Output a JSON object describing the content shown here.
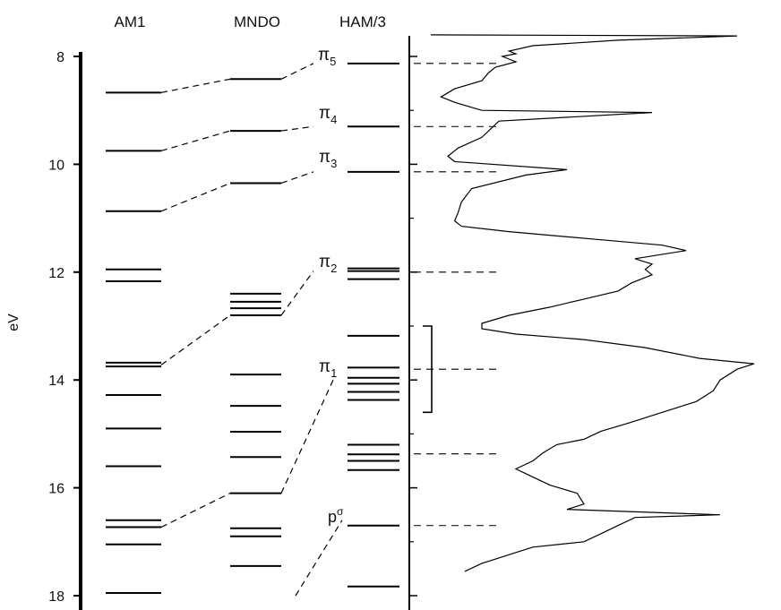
{
  "headers": {
    "am1": "AM1",
    "mndo": "MNDO",
    "ham3": "HAM/3"
  },
  "axis": {
    "label": "eV",
    "range": [
      7.6,
      18.2
    ],
    "ticks": [
      {
        "v": 8,
        "label": "8"
      },
      {
        "v": 10,
        "label": "10"
      },
      {
        "v": 12,
        "label": "12"
      },
      {
        "v": 14,
        "label": "14"
      },
      {
        "v": 16,
        "label": "16"
      },
      {
        "v": 18,
        "label": "18"
      }
    ]
  },
  "orbital_labels": {
    "pi5": {
      "sym": "π",
      "sub": "5"
    },
    "pi4": {
      "sym": "π",
      "sub": "4"
    },
    "pi3": {
      "sym": "π",
      "sub": "3"
    },
    "pi2": {
      "sym": "π",
      "sub": "2"
    },
    "pi1": {
      "sym": "π",
      "sub": "1"
    },
    "psigma": {
      "sym": "p",
      "sub": "σ"
    }
  },
  "levels": {
    "am1": [
      8.67,
      9.75,
      10.87,
      11.95,
      12.17,
      13.68,
      13.75,
      14.28,
      14.9,
      15.6,
      16.6,
      16.73,
      17.05,
      17.95
    ],
    "mndo": [
      8.42,
      9.38,
      10.35,
      12.4,
      12.55,
      12.67,
      12.8,
      13.9,
      14.48,
      14.96,
      15.43,
      16.1,
      16.75,
      16.9,
      17.45
    ],
    "ham3": [
      8.13,
      9.3,
      10.14,
      11.93,
      11.98,
      12.13,
      13.18,
      13.77,
      13.96,
      14.07,
      14.22,
      14.37,
      15.2,
      15.38,
      15.5,
      15.67,
      16.7,
      17.83
    ]
  },
  "correlations": [
    {
      "am1": 8.67,
      "mndo": 8.42,
      "ham3": 8.13
    },
    {
      "am1": 9.75,
      "mndo": 9.38,
      "ham3": 9.3
    },
    {
      "am1": 10.87,
      "mndo": 10.35,
      "ham3": 10.14
    },
    {
      "am1": 13.72,
      "mndo": 12.8,
      "ham3": 11.98
    },
    {
      "am1": 16.73,
      "mndo": 16.1,
      "ham3": 14.1
    },
    {
      "mndo": 18.0,
      "ham3": 16.7
    }
  ],
  "spectrum": [
    [
      7.6,
      0.05
    ],
    [
      7.62,
      0.95
    ],
    [
      7.7,
      0.6
    ],
    [
      7.8,
      0.35
    ],
    [
      7.9,
      0.28
    ],
    [
      7.95,
      0.3
    ],
    [
      8.0,
      0.26
    ],
    [
      8.1,
      0.3
    ],
    [
      8.2,
      0.24
    ],
    [
      8.3,
      0.22
    ],
    [
      8.45,
      0.2
    ],
    [
      8.6,
      0.12
    ],
    [
      8.75,
      0.08
    ],
    [
      8.85,
      0.12
    ],
    [
      9.0,
      0.2
    ],
    [
      9.04,
      0.7
    ],
    [
      9.2,
      0.25
    ],
    [
      9.5,
      0.2
    ],
    [
      9.7,
      0.13
    ],
    [
      9.85,
      0.1
    ],
    [
      9.95,
      0.12
    ],
    [
      10.1,
      0.45
    ],
    [
      10.2,
      0.33
    ],
    [
      10.45,
      0.17
    ],
    [
      10.7,
      0.14
    ],
    [
      10.9,
      0.13
    ],
    [
      11.05,
      0.12
    ],
    [
      11.15,
      0.14
    ],
    [
      11.25,
      0.28
    ],
    [
      11.4,
      0.55
    ],
    [
      11.5,
      0.73
    ],
    [
      11.6,
      0.8
    ],
    [
      11.75,
      0.65
    ],
    [
      11.85,
      0.7
    ],
    [
      11.95,
      0.68
    ],
    [
      12.05,
      0.7
    ],
    [
      12.2,
      0.64
    ],
    [
      12.35,
      0.6
    ],
    [
      12.5,
      0.5
    ],
    [
      12.65,
      0.4
    ],
    [
      12.8,
      0.28
    ],
    [
      12.95,
      0.2
    ],
    [
      13.05,
      0.2
    ],
    [
      13.15,
      0.3
    ],
    [
      13.25,
      0.5
    ],
    [
      13.4,
      0.68
    ],
    [
      13.6,
      0.84
    ],
    [
      13.7,
      1.0
    ],
    [
      13.8,
      0.95
    ],
    [
      14.0,
      0.9
    ],
    [
      14.2,
      0.88
    ],
    [
      14.4,
      0.83
    ],
    [
      14.6,
      0.73
    ],
    [
      14.8,
      0.63
    ],
    [
      14.95,
      0.55
    ],
    [
      15.1,
      0.5
    ],
    [
      15.2,
      0.42
    ],
    [
      15.35,
      0.38
    ],
    [
      15.5,
      0.35
    ],
    [
      15.65,
      0.3
    ],
    [
      15.8,
      0.35
    ],
    [
      15.95,
      0.4
    ],
    [
      16.1,
      0.48
    ],
    [
      16.3,
      0.5
    ],
    [
      16.4,
      0.45
    ],
    [
      16.5,
      0.9
    ],
    [
      16.55,
      0.65
    ],
    [
      16.7,
      0.6
    ],
    [
      16.85,
      0.55
    ],
    [
      17.0,
      0.5
    ],
    [
      17.1,
      0.35
    ],
    [
      17.2,
      0.3
    ],
    [
      17.3,
      0.25
    ],
    [
      17.4,
      0.2
    ],
    [
      17.55,
      0.15
    ]
  ],
  "peak_markers": [
    8.13,
    9.3,
    10.14,
    12.0,
    13.8,
    15.37,
    16.7
  ],
  "bracket": [
    13.0,
    14.6
  ]
}
